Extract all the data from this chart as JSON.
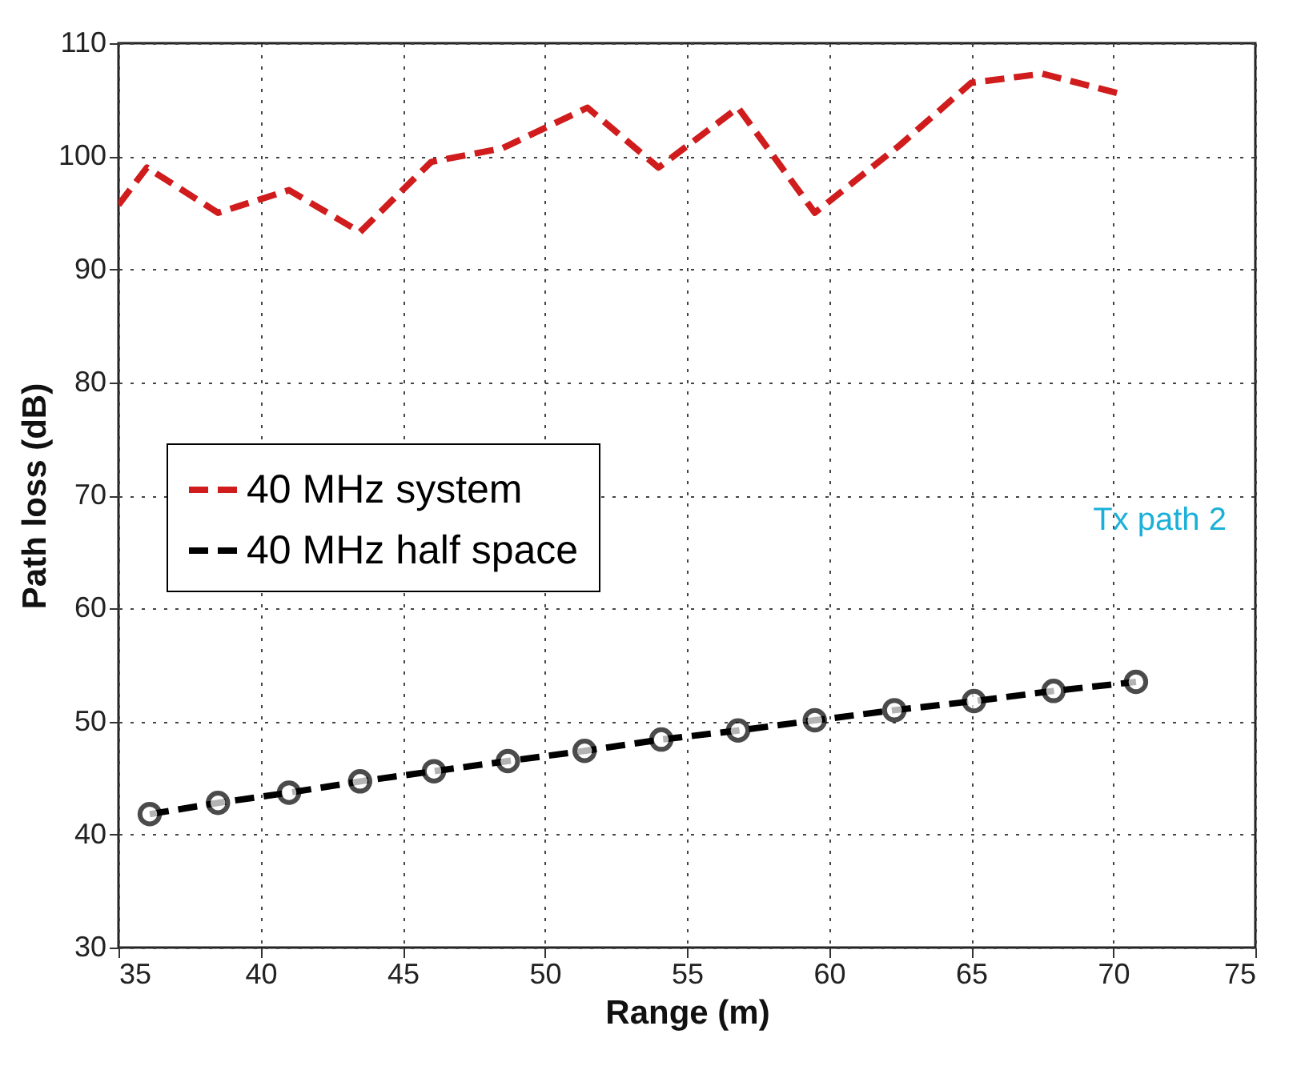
{
  "chart_data": {
    "type": "line",
    "xlabel": "Range (m)",
    "ylabel": "Path loss (dB)",
    "xlim": [
      35,
      75
    ],
    "xticks": [
      35,
      40,
      45,
      50,
      55,
      60,
      65,
      70,
      75
    ],
    "ylim": [
      30,
      110
    ],
    "yticks": [
      30,
      40,
      50,
      60,
      70,
      80,
      90,
      100,
      110
    ],
    "grid": true,
    "legend": "left",
    "line_style": "dashed",
    "annotations": [
      "Tx path 2"
    ],
    "series": [
      {
        "name": "40 MHz system",
        "color": "#d01c1c",
        "marker": "none",
        "x": [
          35,
          36,
          38.5,
          41,
          43.5,
          46,
          48.5,
          51.5,
          54,
          56.8,
          59.5,
          62.5,
          65,
          67.5,
          70.3
        ],
        "values": [
          95.7,
          99,
          95,
          97,
          93.3,
          99.5,
          100.7,
          104.3,
          99,
          104.3,
          95,
          101,
          106.5,
          107.3,
          105.5
        ]
      },
      {
        "name": "40 MHz half space",
        "color": "#000000",
        "marker": "circle",
        "x": [
          36.1,
          38.5,
          41,
          43.5,
          46.1,
          48.7,
          51.4,
          54.1,
          56.8,
          59.5,
          62.3,
          65.1,
          67.9,
          70.8
        ],
        "values": [
          41.8,
          42.8,
          43.7,
          44.7,
          45.6,
          46.5,
          47.4,
          48.4,
          49.2,
          50.1,
          51,
          51.8,
          52.7,
          53.5
        ]
      }
    ]
  }
}
